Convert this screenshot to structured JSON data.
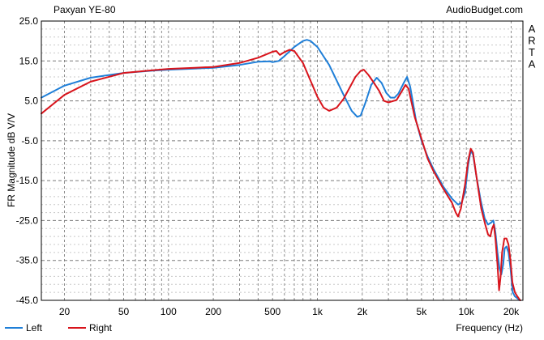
{
  "chart_data": {
    "type": "line",
    "title": "Paxyan YE-80",
    "source_label": "AudioBudget.com",
    "side_label": "ARTA",
    "xlabel": "Frequency (Hz)",
    "ylabel": "FR Magnitude dB V/V",
    "x_scale": "log",
    "xlim": [
      14,
      24000
    ],
    "ylim": [
      -45,
      25
    ],
    "x_ticks": [
      {
        "value": 20,
        "label": "20"
      },
      {
        "value": 50,
        "label": "50"
      },
      {
        "value": 100,
        "label": "100"
      },
      {
        "value": 200,
        "label": "200"
      },
      {
        "value": 500,
        "label": "500"
      },
      {
        "value": 1000,
        "label": "1k"
      },
      {
        "value": 2000,
        "label": "2k"
      },
      {
        "value": 5000,
        "label": "5k"
      },
      {
        "value": 10000,
        "label": "10k"
      },
      {
        "value": 20000,
        "label": "20k"
      }
    ],
    "y_ticks": [
      {
        "value": 25,
        "label": "25.0"
      },
      {
        "value": 15,
        "label": "15.0"
      },
      {
        "value": 5,
        "label": "5.0"
      },
      {
        "value": -5,
        "label": "-5.0"
      },
      {
        "value": -15,
        "label": "-15.0"
      },
      {
        "value": -25,
        "label": "-25.0"
      },
      {
        "value": -35,
        "label": "-35.0"
      },
      {
        "value": -45,
        "label": "-45.0"
      }
    ],
    "grid": true,
    "legend_position": "bottom-left",
    "series": [
      {
        "name": "Left",
        "color": "#1f7fd8",
        "points": [
          [
            14,
            5.8
          ],
          [
            20,
            8.8
          ],
          [
            30,
            10.8
          ],
          [
            50,
            12.0
          ],
          [
            80,
            12.6
          ],
          [
            100,
            12.8
          ],
          [
            150,
            13.1
          ],
          [
            200,
            13.3
          ],
          [
            300,
            14.0
          ],
          [
            400,
            14.8
          ],
          [
            480,
            14.9
          ],
          [
            500,
            14.7
          ],
          [
            550,
            15.0
          ],
          [
            600,
            16.2
          ],
          [
            700,
            18.5
          ],
          [
            800,
            20.0
          ],
          [
            850,
            20.3
          ],
          [
            900,
            20.0
          ],
          [
            1000,
            18.5
          ],
          [
            1200,
            14.0
          ],
          [
            1500,
            6.5
          ],
          [
            1700,
            2.5
          ],
          [
            1850,
            1.0
          ],
          [
            1950,
            1.3
          ],
          [
            2100,
            4.5
          ],
          [
            2300,
            9.0
          ],
          [
            2500,
            10.8
          ],
          [
            2700,
            9.5
          ],
          [
            2900,
            7.0
          ],
          [
            3100,
            5.8
          ],
          [
            3300,
            5.8
          ],
          [
            3500,
            6.8
          ],
          [
            3800,
            9.5
          ],
          [
            4000,
            11.0
          ],
          [
            4200,
            8.5
          ],
          [
            4600,
            0.0
          ],
          [
            5000,
            -5.0
          ],
          [
            5500,
            -9.0
          ],
          [
            6000,
            -12.0
          ],
          [
            7000,
            -16.5
          ],
          [
            8000,
            -19.5
          ],
          [
            8800,
            -21.0
          ],
          [
            9300,
            -20.5
          ],
          [
            9800,
            -18.0
          ],
          [
            10300,
            -11.0
          ],
          [
            10700,
            -7.5
          ],
          [
            11100,
            -8.5
          ],
          [
            11700,
            -14.0
          ],
          [
            12500,
            -20.0
          ],
          [
            13300,
            -24.5
          ],
          [
            14000,
            -26.0
          ],
          [
            14700,
            -25.5
          ],
          [
            15200,
            -25.0
          ],
          [
            15700,
            -28.0
          ],
          [
            16200,
            -33.0
          ],
          [
            16700,
            -37.0
          ],
          [
            17200,
            -38.5
          ],
          [
            17700,
            -36.0
          ],
          [
            18100,
            -32.0
          ],
          [
            18600,
            -31.5
          ],
          [
            19200,
            -33.0
          ],
          [
            19800,
            -37.0
          ],
          [
            20500,
            -43.0
          ],
          [
            21200,
            -44.0
          ],
          [
            22000,
            -44.5
          ],
          [
            23000,
            -45.0
          ]
        ]
      },
      {
        "name": "Right",
        "color": "#d8141c",
        "points": [
          [
            14,
            1.8
          ],
          [
            20,
            6.5
          ],
          [
            30,
            9.8
          ],
          [
            50,
            12.0
          ],
          [
            80,
            12.7
          ],
          [
            100,
            13.0
          ],
          [
            150,
            13.3
          ],
          [
            200,
            13.5
          ],
          [
            300,
            14.5
          ],
          [
            400,
            15.8
          ],
          [
            500,
            17.3
          ],
          [
            530,
            17.5
          ],
          [
            560,
            16.5
          ],
          [
            600,
            17.2
          ],
          [
            650,
            17.8
          ],
          [
            700,
            17.5
          ],
          [
            800,
            14.5
          ],
          [
            900,
            10.0
          ],
          [
            1000,
            6.0
          ],
          [
            1100,
            3.3
          ],
          [
            1200,
            2.5
          ],
          [
            1350,
            3.3
          ],
          [
            1500,
            5.5
          ],
          [
            1800,
            11.0
          ],
          [
            1950,
            12.5
          ],
          [
            2050,
            12.8
          ],
          [
            2200,
            11.5
          ],
          [
            2400,
            9.5
          ],
          [
            2600,
            7.5
          ],
          [
            2800,
            5.0
          ],
          [
            3000,
            4.6
          ],
          [
            3400,
            5.2
          ],
          [
            3700,
            7.5
          ],
          [
            3900,
            9.0
          ],
          [
            4100,
            8.0
          ],
          [
            4500,
            1.0
          ],
          [
            5000,
            -4.5
          ],
          [
            5500,
            -9.5
          ],
          [
            6000,
            -12.5
          ],
          [
            7000,
            -17.0
          ],
          [
            8000,
            -20.5
          ],
          [
            8500,
            -23.0
          ],
          [
            8800,
            -24.0
          ],
          [
            9200,
            -22.0
          ],
          [
            9800,
            -16.0
          ],
          [
            10300,
            -10.0
          ],
          [
            10700,
            -7.0
          ],
          [
            11100,
            -8.0
          ],
          [
            11800,
            -15.0
          ],
          [
            12600,
            -22.0
          ],
          [
            13400,
            -26.0
          ],
          [
            14000,
            -28.5
          ],
          [
            14500,
            -29.0
          ],
          [
            14900,
            -27.0
          ],
          [
            15300,
            -26.0
          ],
          [
            15700,
            -29.5
          ],
          [
            16200,
            -36.0
          ],
          [
            16600,
            -42.5
          ],
          [
            17000,
            -39.0
          ],
          [
            17400,
            -33.0
          ],
          [
            18000,
            -29.5
          ],
          [
            18600,
            -29.5
          ],
          [
            19200,
            -31.0
          ],
          [
            19800,
            -35.0
          ],
          [
            20400,
            -40.5
          ],
          [
            21200,
            -43.0
          ],
          [
            22000,
            -44.0
          ],
          [
            23000,
            -45.0
          ]
        ]
      }
    ]
  }
}
